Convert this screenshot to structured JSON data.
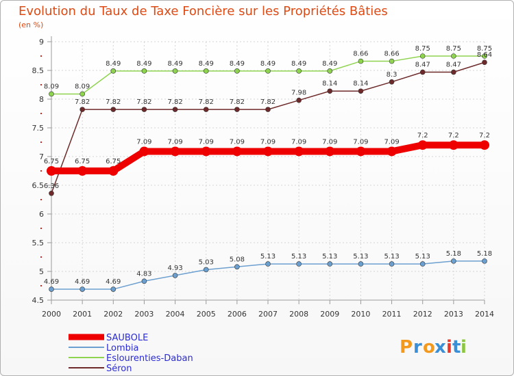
{
  "chart_data": {
    "type": "line",
    "title": "Evolution du Taux de Taxe Foncière sur les Propriétés Bâties",
    "subtitle": "(en %)",
    "xlabel": "",
    "ylabel": "",
    "ylim": [
      4.5,
      9
    ],
    "yticks": [
      "4.5",
      "5",
      "5.5",
      "6",
      "6.5",
      "7",
      "7.5",
      "8",
      "8.5",
      "9"
    ],
    "grid": true,
    "x": [
      "2000",
      "2001",
      "2002",
      "2003",
      "2004",
      "2005",
      "2006",
      "2007",
      "2008",
      "2009",
      "2010",
      "2011",
      "2012",
      "2013",
      "2014"
    ],
    "series": [
      {
        "name": "SAUBOLE",
        "color": "#ee0000",
        "width": 10,
        "values": [
          6.75,
          6.75,
          6.75,
          7.09,
          7.09,
          7.09,
          7.09,
          7.09,
          7.09,
          7.09,
          7.09,
          7.09,
          7.2,
          7.2,
          7.2
        ]
      },
      {
        "name": "Lombia",
        "color": "#6b9fcf",
        "width": 1.5,
        "values": [
          4.69,
          4.69,
          4.69,
          4.83,
          4.93,
          5.03,
          5.08,
          5.13,
          5.13,
          5.13,
          5.13,
          5.13,
          5.13,
          5.18,
          5.18
        ]
      },
      {
        "name": "Eslourenties-Daban",
        "color": "#8fd44f",
        "width": 1.5,
        "values": [
          8.09,
          8.09,
          8.49,
          8.49,
          8.49,
          8.49,
          8.49,
          8.49,
          8.49,
          8.49,
          8.66,
          8.66,
          8.75,
          8.75,
          8.75
        ]
      },
      {
        "name": "Séron",
        "color": "#6e2a2a",
        "width": 1.5,
        "values": [
          6.36,
          7.82,
          7.82,
          7.82,
          7.82,
          7.82,
          7.82,
          7.82,
          7.98,
          8.14,
          8.14,
          8.3,
          8.47,
          8.47,
          8.64
        ]
      }
    ],
    "labels": {
      "SAUBOLE": [
        "6.75",
        "6.75",
        "6.75",
        "7.09",
        "7.09",
        "7.09",
        "7.09",
        "7.09",
        "7.09",
        "7.09",
        "7.09",
        "7.09",
        "7.2",
        "7.2",
        "7.2"
      ],
      "Lombia": [
        "4.69",
        "4.69",
        "4.69",
        "4.83",
        "4.93",
        "5.03",
        "5.08",
        "5.13",
        "5.13",
        "5.13",
        "5.13",
        "5.13",
        "5.13",
        "5.18",
        "5.18"
      ],
      "Eslourenties-Daban": [
        "8.09",
        "8.09",
        "8.49",
        "8.49",
        "8.49",
        "8.49",
        "8.49",
        "8.49",
        "8.49",
        "8.49",
        "8.66",
        "8.66",
        "8.75",
        "8.75",
        "8.75"
      ],
      "Séron": [
        "6.36",
        "7.82",
        "7.82",
        "7.82",
        "7.82",
        "7.82",
        "7.82",
        "7.82",
        "7.98",
        "8.14",
        "8.14",
        "8.3",
        "8.47",
        "8.47",
        "8.64"
      ]
    },
    "legend": [
      "SAUBOLE",
      "Lombia",
      "Eslourenties-Daban",
      "Séron"
    ],
    "legend_position": "bottom-left"
  },
  "logo": {
    "text": "Proxiti",
    "letters": [
      "P",
      "r",
      "o",
      "x",
      "i",
      "t",
      "i"
    ],
    "colors": [
      "#f39a1e",
      "#3a8fd6",
      "#f39a1e",
      "#3a8fd6",
      "#e6392b",
      "#3a8fd6",
      "#8cc63f"
    ]
  }
}
